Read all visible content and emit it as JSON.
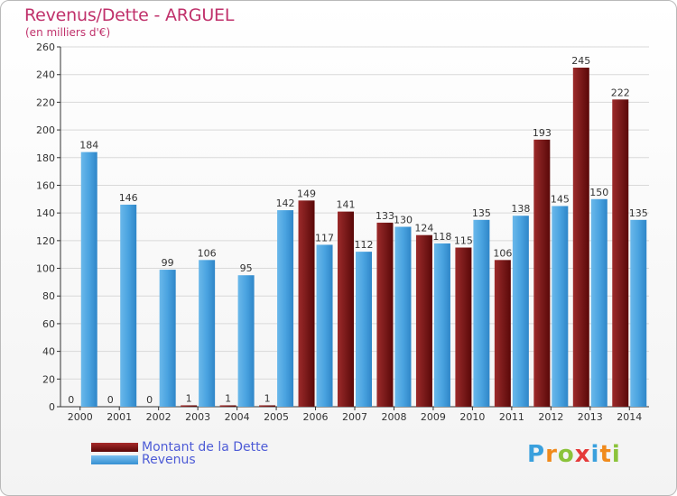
{
  "header": {
    "title": "Revenus/Dette - ARGUEL",
    "subtitle": "(en milliers d'€)"
  },
  "logo": {
    "text": "Proxiti",
    "letters": [
      {
        "ch": "P",
        "color": "#3aa0dd"
      },
      {
        "ch": "r",
        "color": "#f08a1c"
      },
      {
        "ch": "o",
        "color": "#8bc33a"
      },
      {
        "ch": "x",
        "color": "#e53a3a"
      },
      {
        "ch": "i",
        "color": "#3aa0dd"
      },
      {
        "ch": "t",
        "color": "#f08a1c"
      },
      {
        "ch": "i",
        "color": "#8bc33a"
      }
    ]
  },
  "legend": [
    {
      "label": "Montant de la Dette",
      "color": "#7a0f0f"
    },
    {
      "label": "Revenus",
      "color": "#4aa3e0"
    }
  ],
  "chart_data": {
    "type": "bar",
    "title": "Revenus/Dette - ARGUEL",
    "subtitle": "(en milliers d'€)",
    "categories": [
      "2000",
      "2001",
      "2002",
      "2003",
      "2004",
      "2005",
      "2006",
      "2007",
      "2008",
      "2009",
      "2010",
      "2011",
      "2012",
      "2013",
      "2014"
    ],
    "series": [
      {
        "name": "Montant de la Dette",
        "color": "#7a0f0f",
        "values": [
          0,
          0,
          0,
          1,
          1,
          1,
          149,
          141,
          133,
          124,
          115,
          106,
          193,
          245,
          222
        ]
      },
      {
        "name": "Revenus",
        "color": "#4aa3e0",
        "values": [
          184,
          146,
          99,
          106,
          95,
          142,
          117,
          112,
          130,
          118,
          135,
          138,
          145,
          150,
          135
        ]
      }
    ],
    "ylim": [
      0,
      260
    ],
    "yticks": [
      0,
      20,
      40,
      60,
      80,
      100,
      120,
      140,
      160,
      180,
      200,
      220,
      240,
      260
    ],
    "grid": true,
    "legend_position": "bottom-left"
  }
}
